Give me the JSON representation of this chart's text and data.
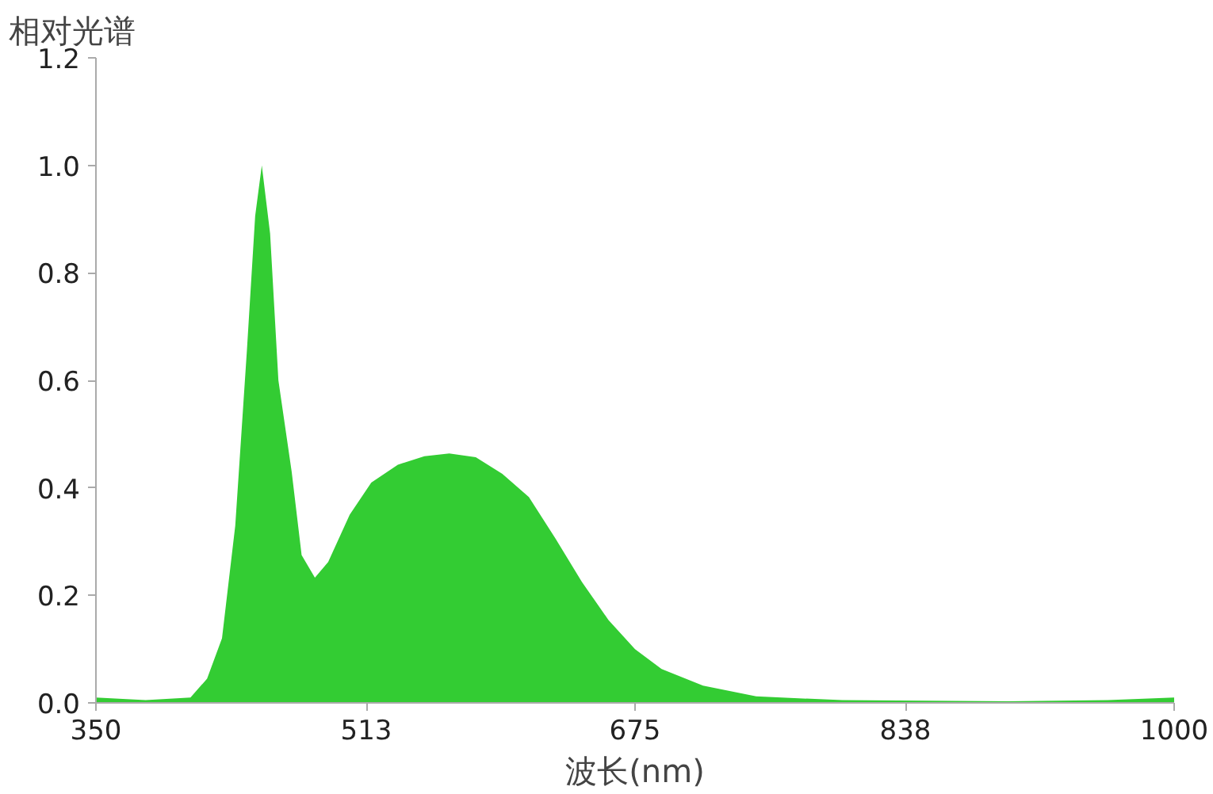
{
  "chart_data": {
    "type": "area",
    "ylabel": "相对光谱",
    "xlabel": "波长(nm)",
    "series": [
      {
        "color": "#33cc33",
        "x": [
          350,
          380,
          407,
          417,
          426,
          434,
          441,
          446,
          450,
          455,
          460,
          468,
          474,
          482,
          490,
          503,
          516,
          532,
          548,
          563,
          579,
          595,
          611,
          627,
          643,
          659,
          675,
          691,
          716,
          748,
          800,
          900,
          960,
          1000
        ],
        "values": [
          0.01,
          0.005,
          0.01,
          0.045,
          0.12,
          0.33,
          0.655,
          0.906,
          1.0,
          0.873,
          0.6,
          0.43,
          0.275,
          0.233,
          0.262,
          0.35,
          0.41,
          0.443,
          0.459,
          0.464,
          0.457,
          0.426,
          0.383,
          0.306,
          0.225,
          0.154,
          0.1,
          0.063,
          0.032,
          0.012,
          0.005,
          0.003,
          0.005,
          0.01
        ]
      }
    ],
    "xlim": [
      350,
      1000
    ],
    "xticks": [
      350,
      513,
      675,
      838,
      1000
    ],
    "ylim": [
      0,
      1.2
    ],
    "yticks": [
      {
        "value": 0,
        "label": "0.0"
      },
      0.2,
      0.4,
      0.6,
      0.8,
      {
        "value": 1,
        "label": "1.0"
      },
      1.2
    ],
    "grid": false
  }
}
